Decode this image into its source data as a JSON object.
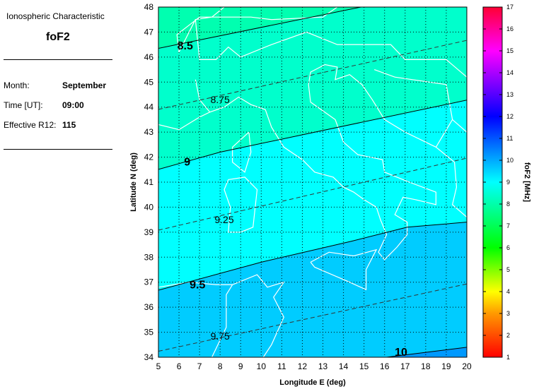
{
  "panel": {
    "heading": "Ionospheric Characteristic",
    "characteristic": "foF2",
    "month_label": "Month:",
    "month_value": "September",
    "time_label": "Time [UT]:",
    "time_value": "09:00",
    "r12_label": "Effective R12:",
    "r12_value": "115"
  },
  "chart_data": {
    "type": "contour-map",
    "xlabel": "Longitude E (deg)",
    "ylabel": "Latitude N (deg)",
    "xlim": [
      5,
      20
    ],
    "ylim": [
      34,
      48
    ],
    "xticks": [
      5,
      6,
      7,
      8,
      9,
      10,
      11,
      12,
      13,
      14,
      15,
      16,
      17,
      18,
      19,
      20
    ],
    "yticks": [
      34,
      35,
      36,
      37,
      38,
      39,
      40,
      41,
      42,
      43,
      44,
      45,
      46,
      47,
      48
    ],
    "grid": true,
    "contours": [
      {
        "level": 8.5,
        "style": "solid",
        "label": "8.5",
        "points": [
          [
            5,
            46.35
          ],
          [
            14.85,
            48
          ]
        ],
        "label_at": [
          6.3,
          46.45
        ]
      },
      {
        "level": 8.75,
        "style": "dashed",
        "label": "8.75",
        "points": [
          [
            5,
            43.91
          ],
          [
            20,
            46.67
          ]
        ],
        "label_at": [
          8.0,
          44.3
        ]
      },
      {
        "level": 9,
        "style": "solid",
        "label": "9",
        "points": [
          [
            5,
            41.51
          ],
          [
            8,
            42.2
          ],
          [
            20,
            44.28
          ]
        ],
        "label_at": [
          6.4,
          41.8
        ]
      },
      {
        "level": 9.25,
        "style": "dashed",
        "label": "9.25",
        "points": [
          [
            5,
            39.08
          ],
          [
            20,
            41.96
          ]
        ],
        "label_at": [
          8.2,
          39.5
        ]
      },
      {
        "level": 9.5,
        "style": "solid",
        "label": "9.5",
        "points": [
          [
            5,
            36.68
          ],
          [
            10,
            37.8
          ],
          [
            14.4,
            38.64
          ],
          [
            17.1,
            39.2
          ],
          [
            20,
            39.4
          ]
        ],
        "label_at": [
          6.9,
          36.9
        ]
      },
      {
        "level": 9.75,
        "style": "dashed",
        "label": "9.75",
        "points": [
          [
            5,
            34.24
          ],
          [
            20,
            36.93
          ]
        ],
        "label_at": [
          8.0,
          34.85
        ]
      },
      {
        "level": 10,
        "style": "solid",
        "label": "10",
        "points": [
          [
            16.1,
            34
          ],
          [
            20,
            34.4
          ]
        ],
        "label_at": [
          16.8,
          33.9
        ]
      }
    ],
    "band_colors": [
      "#00ffb0",
      "#00ffcc",
      "#00ffff",
      "#00ccff",
      "#0099ff"
    ],
    "colorbar": {
      "label": "foF2 [MHz]",
      "range": [
        1,
        17
      ],
      "ticks": [
        1,
        2,
        3,
        4,
        5,
        6,
        7,
        8,
        9,
        10,
        11,
        12,
        13,
        14,
        15,
        16,
        17
      ],
      "stops": [
        [
          1,
          "#ff0000"
        ],
        [
          3,
          "#ff9900"
        ],
        [
          4,
          "#ffff00"
        ],
        [
          6,
          "#00ff00"
        ],
        [
          9,
          "#00ffff"
        ],
        [
          10,
          "#00aaff"
        ],
        [
          12,
          "#0000ff"
        ],
        [
          14,
          "#aa00ff"
        ],
        [
          15,
          "#ff00ff"
        ],
        [
          17,
          "#ff0033"
        ]
      ]
    }
  }
}
